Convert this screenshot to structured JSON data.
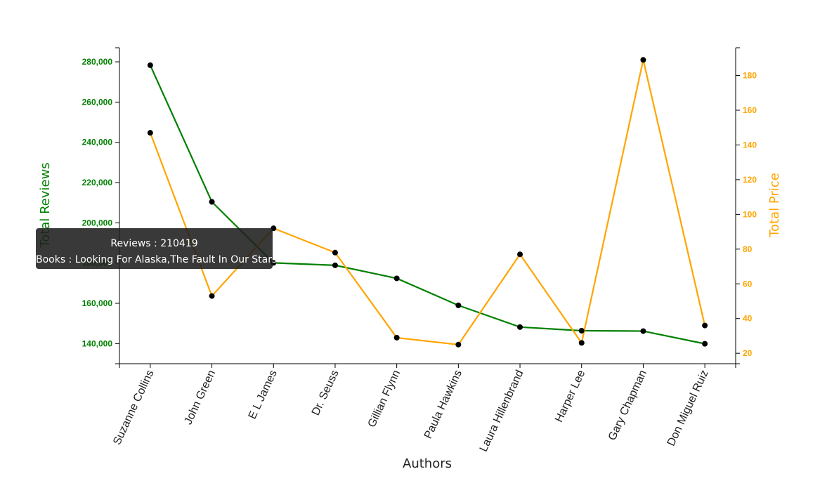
{
  "chart_data": {
    "type": "line",
    "xlabel": "Authors",
    "categories": [
      "Suzanne Collins",
      "John Green",
      "E L James",
      "Dr. Seuss",
      "Gillian Flynn",
      "Paula Hawkins",
      "Laura Hillenbrand",
      "Harper Lee",
      "Gary Chapman",
      "Don Miguel Ruiz"
    ],
    "y_left": {
      "label": "Total Reviews",
      "ylim": [
        130000,
        287000
      ],
      "ticks": [
        140000,
        160000,
        180000,
        200000,
        220000,
        240000,
        260000,
        280000
      ],
      "tick_labels": [
        "140,000",
        "160,000",
        "180,000",
        "200,000",
        "220,000",
        "240,000",
        "260,000",
        "280,000"
      ],
      "color": "#008000"
    },
    "y_right": {
      "label": "Total Price",
      "ylim": [
        14,
        196
      ],
      "ticks": [
        20,
        40,
        60,
        80,
        100,
        120,
        140,
        160,
        180
      ],
      "tick_labels": [
        "20",
        "40",
        "60",
        "80",
        "100",
        "120",
        "140",
        "160",
        "180"
      ],
      "color": "#FFA500"
    },
    "series": [
      {
        "name": "Total Reviews",
        "axis": "left",
        "color": "#008000",
        "values": [
          278300,
          210419,
          180100,
          178900,
          172400,
          159000,
          148200,
          146400,
          146200,
          139900
        ]
      },
      {
        "name": "Total Price",
        "axis": "right",
        "color": "#FFA500",
        "values": [
          147,
          53,
          92,
          78,
          29,
          25,
          77,
          26,
          189,
          36
        ]
      }
    ],
    "grid": false,
    "legend": "none"
  },
  "tooltip": {
    "line1": "Reviews : 210419",
    "line2": "Books : Looking For Alaska,The Fault In Our Stars"
  }
}
